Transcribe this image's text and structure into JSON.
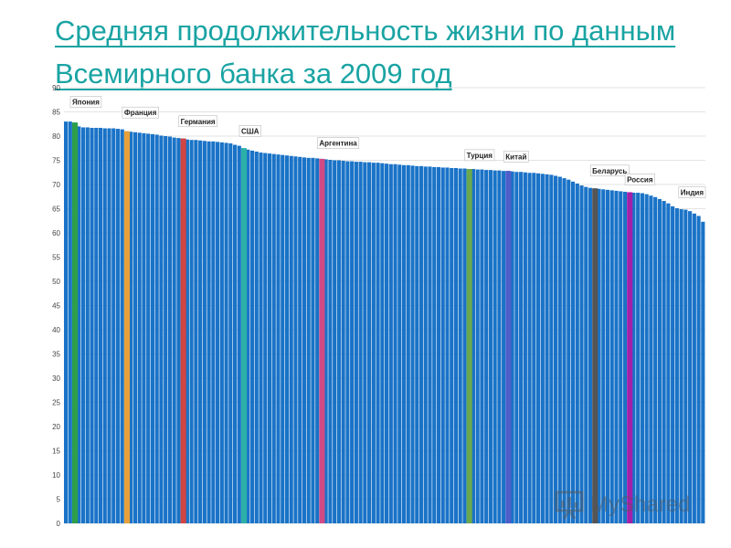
{
  "title": "Средняя продолжительность жизни по данным Всемирного банка за 2009 год",
  "watermark": "MyShared",
  "chart_data": {
    "type": "bar",
    "ylim": [
      0,
      90
    ],
    "yticks": [
      0,
      5,
      10,
      15,
      20,
      25,
      30,
      35,
      40,
      45,
      50,
      55,
      60,
      65,
      70,
      75,
      80,
      85,
      90
    ],
    "grid": true,
    "bar_color": "#1a73c7",
    "values": [
      83.0,
      83.0,
      82.8,
      82.0,
      81.8,
      81.8,
      81.7,
      81.7,
      81.7,
      81.6,
      81.6,
      81.6,
      81.5,
      81.4,
      81.0,
      80.9,
      80.8,
      80.7,
      80.6,
      80.5,
      80.4,
      80.3,
      80.1,
      80.0,
      79.9,
      79.7,
      79.6,
      79.5,
      79.3,
      79.2,
      79.2,
      79.1,
      79.0,
      78.9,
      78.9,
      78.8,
      78.7,
      78.6,
      78.5,
      78.2,
      78.0,
      77.5,
      77.2,
      77.0,
      76.8,
      76.6,
      76.5,
      76.4,
      76.3,
      76.2,
      76.1,
      76.0,
      75.9,
      75.8,
      75.7,
      75.6,
      75.5,
      75.5,
      75.4,
      75.3,
      75.2,
      75.1,
      75.0,
      75.0,
      74.9,
      74.8,
      74.8,
      74.7,
      74.7,
      74.6,
      74.6,
      74.5,
      74.5,
      74.4,
      74.3,
      74.2,
      74.2,
      74.1,
      74.0,
      74.0,
      73.9,
      73.8,
      73.8,
      73.7,
      73.7,
      73.6,
      73.6,
      73.5,
      73.5,
      73.4,
      73.4,
      73.3,
      73.3,
      73.2,
      73.2,
      73.1,
      73.1,
      73.0,
      73.0,
      72.9,
      72.9,
      72.8,
      72.8,
      72.7,
      72.6,
      72.6,
      72.5,
      72.4,
      72.4,
      72.3,
      72.2,
      72.1,
      72.0,
      71.8,
      71.6,
      71.3,
      71.0,
      70.6,
      70.2,
      69.8,
      69.5,
      69.3,
      69.2,
      69.1,
      69.0,
      68.9,
      68.8,
      68.7,
      68.6,
      68.5,
      68.4,
      68.3,
      68.3,
      68.2,
      68.0,
      67.7,
      67.4,
      67.0,
      66.6,
      66.1,
      65.5,
      65.1,
      64.9,
      64.8,
      64.5,
      64.0,
      63.5,
      62.3
    ],
    "highlights": [
      {
        "label": "Япония",
        "index": 2,
        "color": "#2e9e4a",
        "label_value": 86.5
      },
      {
        "label": "Франция",
        "index": 14,
        "color": "#e8a13a",
        "label_value": 84.3
      },
      {
        "label": "Германия",
        "index": 27,
        "color": "#d14545",
        "label_value": 82.5
      },
      {
        "label": "США",
        "index": 41,
        "color": "#2bb0a8",
        "label_value": 80.5
      },
      {
        "label": "Аргентина",
        "index": 59,
        "color": "#d04a86",
        "label_value": 78.0
      },
      {
        "label": "Турция",
        "index": 93,
        "color": "#6aa84f",
        "label_value": 75.5
      },
      {
        "label": "Китай",
        "index": 102,
        "color": "#4e5ec9",
        "label_value": 75.2
      },
      {
        "label": "Беларусь",
        "index": 122,
        "color": "#555555",
        "label_value": 72.3
      },
      {
        "label": "Россия",
        "index": 130,
        "color": "#a321a8",
        "label_value": 70.5
      },
      {
        "label": "Индия",
        "index": 148,
        "color": "#d14545",
        "label_value": 67.8
      }
    ]
  }
}
